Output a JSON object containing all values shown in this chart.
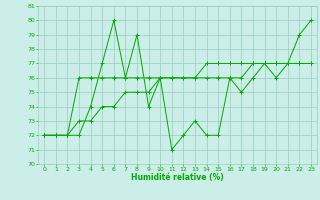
{
  "xlabel": "Humidité relative (%)",
  "bg_color": "#cceee8",
  "line_color": "#00aa00",
  "grid_color": "#99ccbb",
  "xlim": [
    -0.5,
    23.5
  ],
  "ylim": [
    70,
    81
  ],
  "yticks": [
    70,
    71,
    72,
    73,
    74,
    75,
    76,
    77,
    78,
    79,
    80,
    81
  ],
  "xticks": [
    0,
    1,
    2,
    3,
    4,
    5,
    6,
    7,
    8,
    9,
    10,
    11,
    12,
    13,
    14,
    15,
    16,
    17,
    18,
    19,
    20,
    21,
    22,
    23
  ],
  "series": [
    [
      72,
      72,
      72,
      72,
      74,
      77,
      80,
      76,
      79,
      74,
      76,
      71,
      72,
      73,
      72,
      72,
      76,
      75,
      76,
      77,
      76,
      77,
      79,
      80
    ],
    [
      72,
      72,
      72,
      76,
      76,
      76,
      76,
      76,
      76,
      76,
      76,
      76,
      76,
      76,
      76,
      76,
      76,
      76,
      77,
      77,
      77,
      77,
      77,
      77
    ],
    [
      72,
      72,
      72,
      73,
      73,
      74,
      74,
      75,
      75,
      75,
      76,
      76,
      76,
      76,
      77,
      77,
      77,
      77,
      77,
      77,
      77,
      77,
      77,
      77
    ]
  ]
}
